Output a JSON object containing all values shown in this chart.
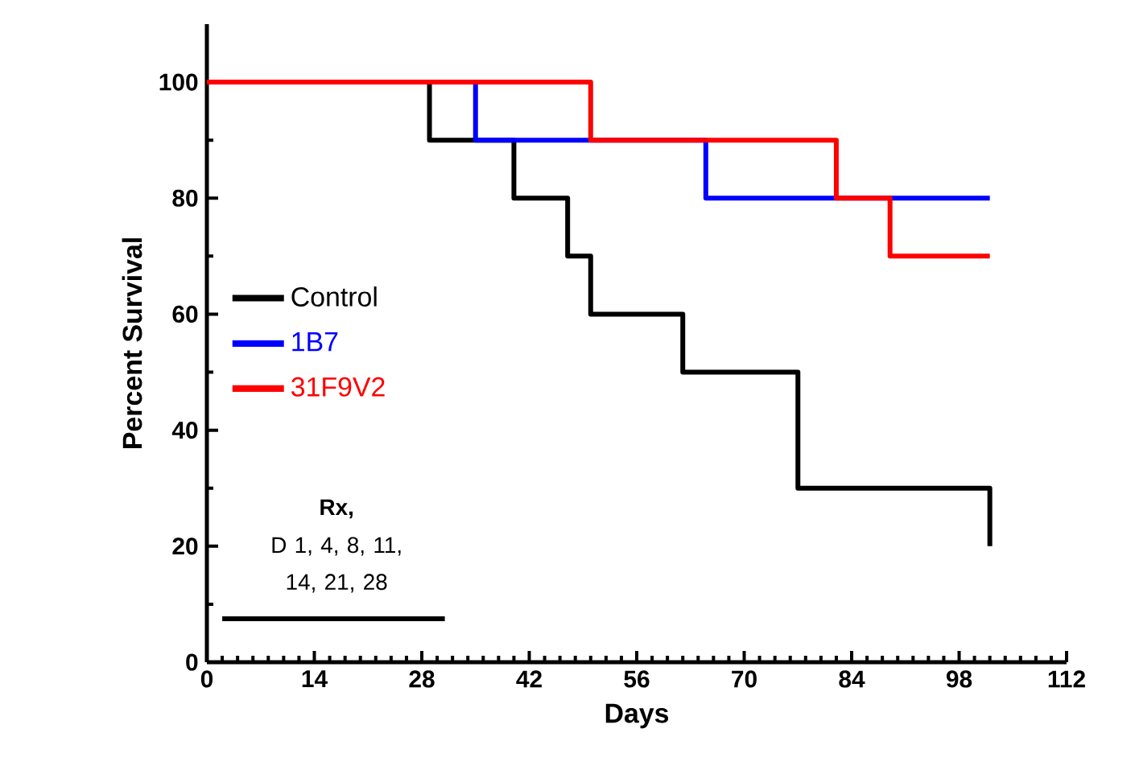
{
  "chart_data": {
    "type": "step",
    "xlabel": "Days",
    "ylabel": "Percent Survival",
    "xlim": [
      0,
      112
    ],
    "ylim": [
      0,
      110
    ],
    "xticks": [
      0,
      14,
      28,
      42,
      56,
      70,
      84,
      98,
      112
    ],
    "yticks": [
      0,
      20,
      40,
      60,
      80,
      100
    ],
    "legend": "center left",
    "grid": false,
    "marker": "none",
    "line_style": "solid",
    "annotations": [
      "**Rx,**",
      "D 1, 4, 8, 11, 14, 21, 28"
    ],
    "series": [
      {
        "name": "Control",
        "color": "#000000",
        "x": [
          0,
          29,
          40,
          47,
          50,
          62,
          77,
          102
        ],
        "values": [
          100,
          90,
          80,
          70,
          60,
          50,
          30,
          20
        ]
      },
      {
        "name": "1B7",
        "color": "#0000ff",
        "x": [
          0,
          35,
          65,
          102
        ],
        "values": [
          100,
          90,
          80,
          80
        ]
      },
      {
        "name": "31F9V2",
        "color": "#ff0000",
        "x": [
          0,
          50,
          82,
          89,
          102
        ],
        "values": [
          100,
          90,
          80,
          70,
          70
        ]
      },
      {
        "type": "line",
        "color": "#000000",
        "x": [
          2,
          31
        ],
        "values": [
          7.5,
          7.5
        ]
      }
    ]
  }
}
